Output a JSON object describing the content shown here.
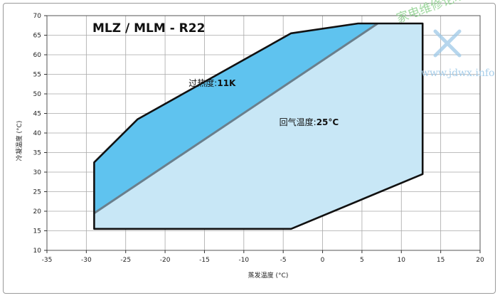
{
  "chart_data": {
    "type": "area",
    "title": "MLZ / MLM  -  R22",
    "xlabel": "蒸发温度 (°C)",
    "ylabel": "冷凝温度 (°C)",
    "xlim": [
      -35,
      20
    ],
    "ylim": [
      10,
      70
    ],
    "x_ticks": [
      -35,
      -30,
      -25,
      -20,
      -15,
      -10,
      -5,
      0,
      5,
      10,
      15,
      20
    ],
    "y_ticks": [
      10,
      15,
      20,
      25,
      30,
      35,
      40,
      45,
      50,
      55,
      60,
      65,
      70
    ],
    "grid": true,
    "envelope_total": [
      [
        -29,
        15.5
      ],
      [
        -4,
        15.5
      ],
      [
        12.7,
        29.5
      ],
      [
        12.7,
        68
      ],
      [
        4.5,
        68
      ],
      [
        -4,
        65.5
      ],
      [
        -23.5,
        43.5
      ],
      [
        -29,
        32.5
      ]
    ],
    "envelope_superheat": [
      [
        -29,
        19.5
      ],
      [
        7,
        68
      ],
      [
        4.5,
        68
      ],
      [
        -4,
        65.5
      ],
      [
        -23.5,
        43.5
      ],
      [
        -29,
        32.5
      ]
    ],
    "limit_line": [
      [
        -29,
        19.5
      ],
      [
        7,
        68
      ]
    ],
    "annotations": [
      {
        "label": "过热度:",
        "value": "11K",
        "x": -17,
        "y": 52
      },
      {
        "label": "回气温度:",
        "value": "25°C",
        "x": -5.5,
        "y": 42
      }
    ]
  },
  "watermark": {
    "line1": "家电维修论坛",
    "line2": "www.jdwx.info"
  },
  "colors": {
    "light_fill": "#c8e7f6",
    "dark_fill": "#5fc3ef",
    "outline": "#111111",
    "limit_line": "#6a7f8c",
    "grid": "#a8a8a8"
  }
}
